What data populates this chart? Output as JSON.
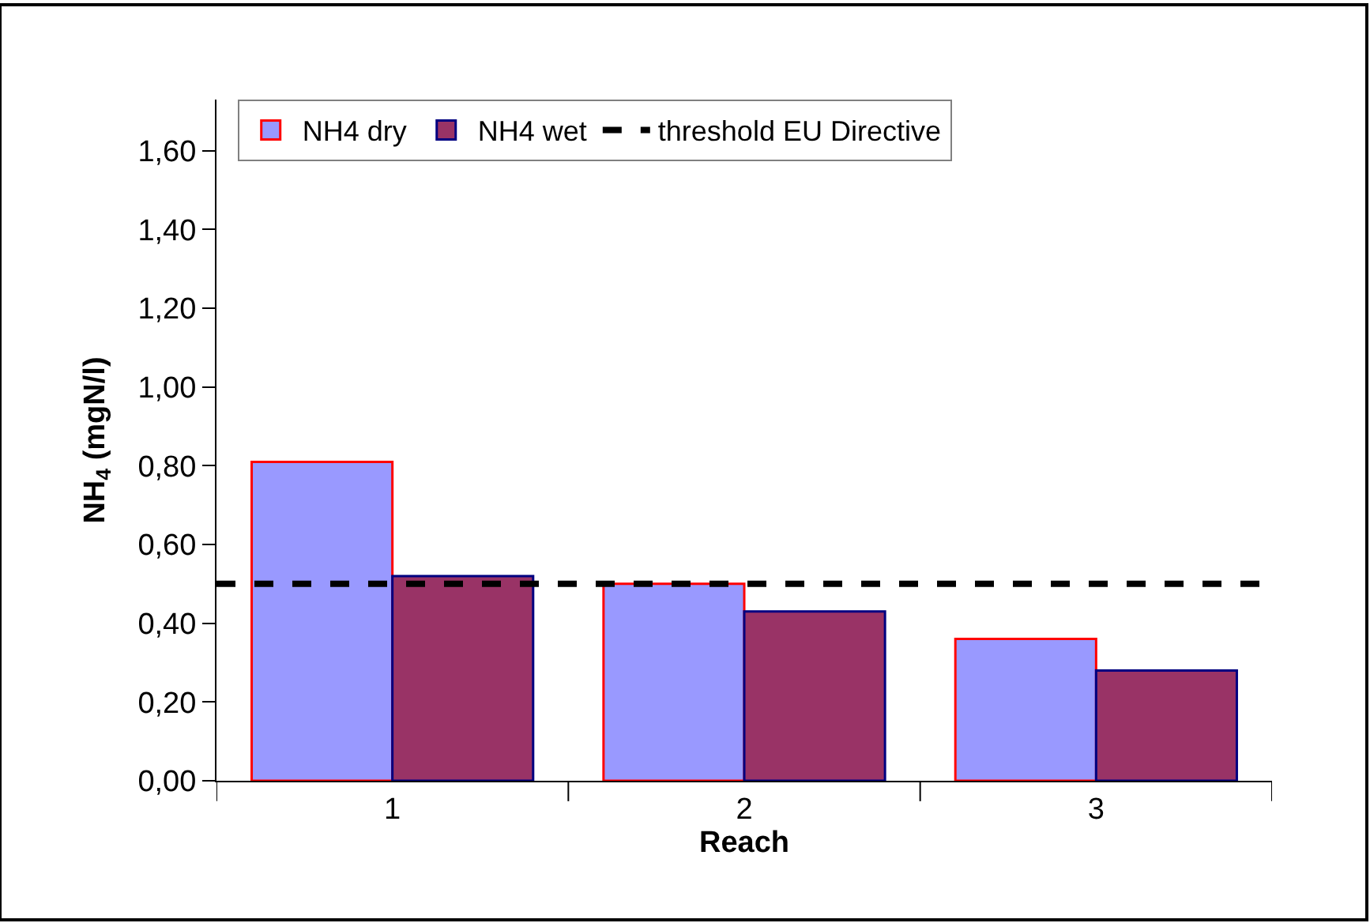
{
  "chart_data": {
    "type": "bar",
    "xlabel": "Reach",
    "ylabel": "NH$_{4}$ (mgN/l)",
    "categories": [
      "1",
      "2",
      "3"
    ],
    "series": [
      {
        "name": "NH4 dry",
        "color": "#9999ff",
        "values": [
          0.81,
          0.5,
          0.36
        ]
      },
      {
        "name": "NH4 wet",
        "color": "#993366",
        "values": [
          0.52,
          0.43,
          0.28
        ]
      }
    ],
    "ylim": [
      0,
      1.73
    ],
    "yticks": [
      {
        "value": 0,
        "label": "0,00"
      },
      {
        "value": 0.2,
        "label": "0,20"
      },
      {
        "value": 0.4,
        "label": "0,40"
      },
      {
        "value": 0.6,
        "label": "0,60"
      },
      {
        "value": 0.8,
        "label": "0,80"
      },
      {
        "value": 1.0,
        "label": "1,00"
      },
      {
        "value": 1.2,
        "label": "1,20"
      },
      {
        "value": 1.4,
        "label": "1,40"
      },
      {
        "value": 1.6,
        "label": "1,60"
      }
    ],
    "ref_lines": [
      {
        "axis": "y",
        "value": 0.5,
        "label": "threshold EU Directive",
        "color": "#000000",
        "line_style": "dashed"
      }
    ],
    "legend": "top"
  }
}
